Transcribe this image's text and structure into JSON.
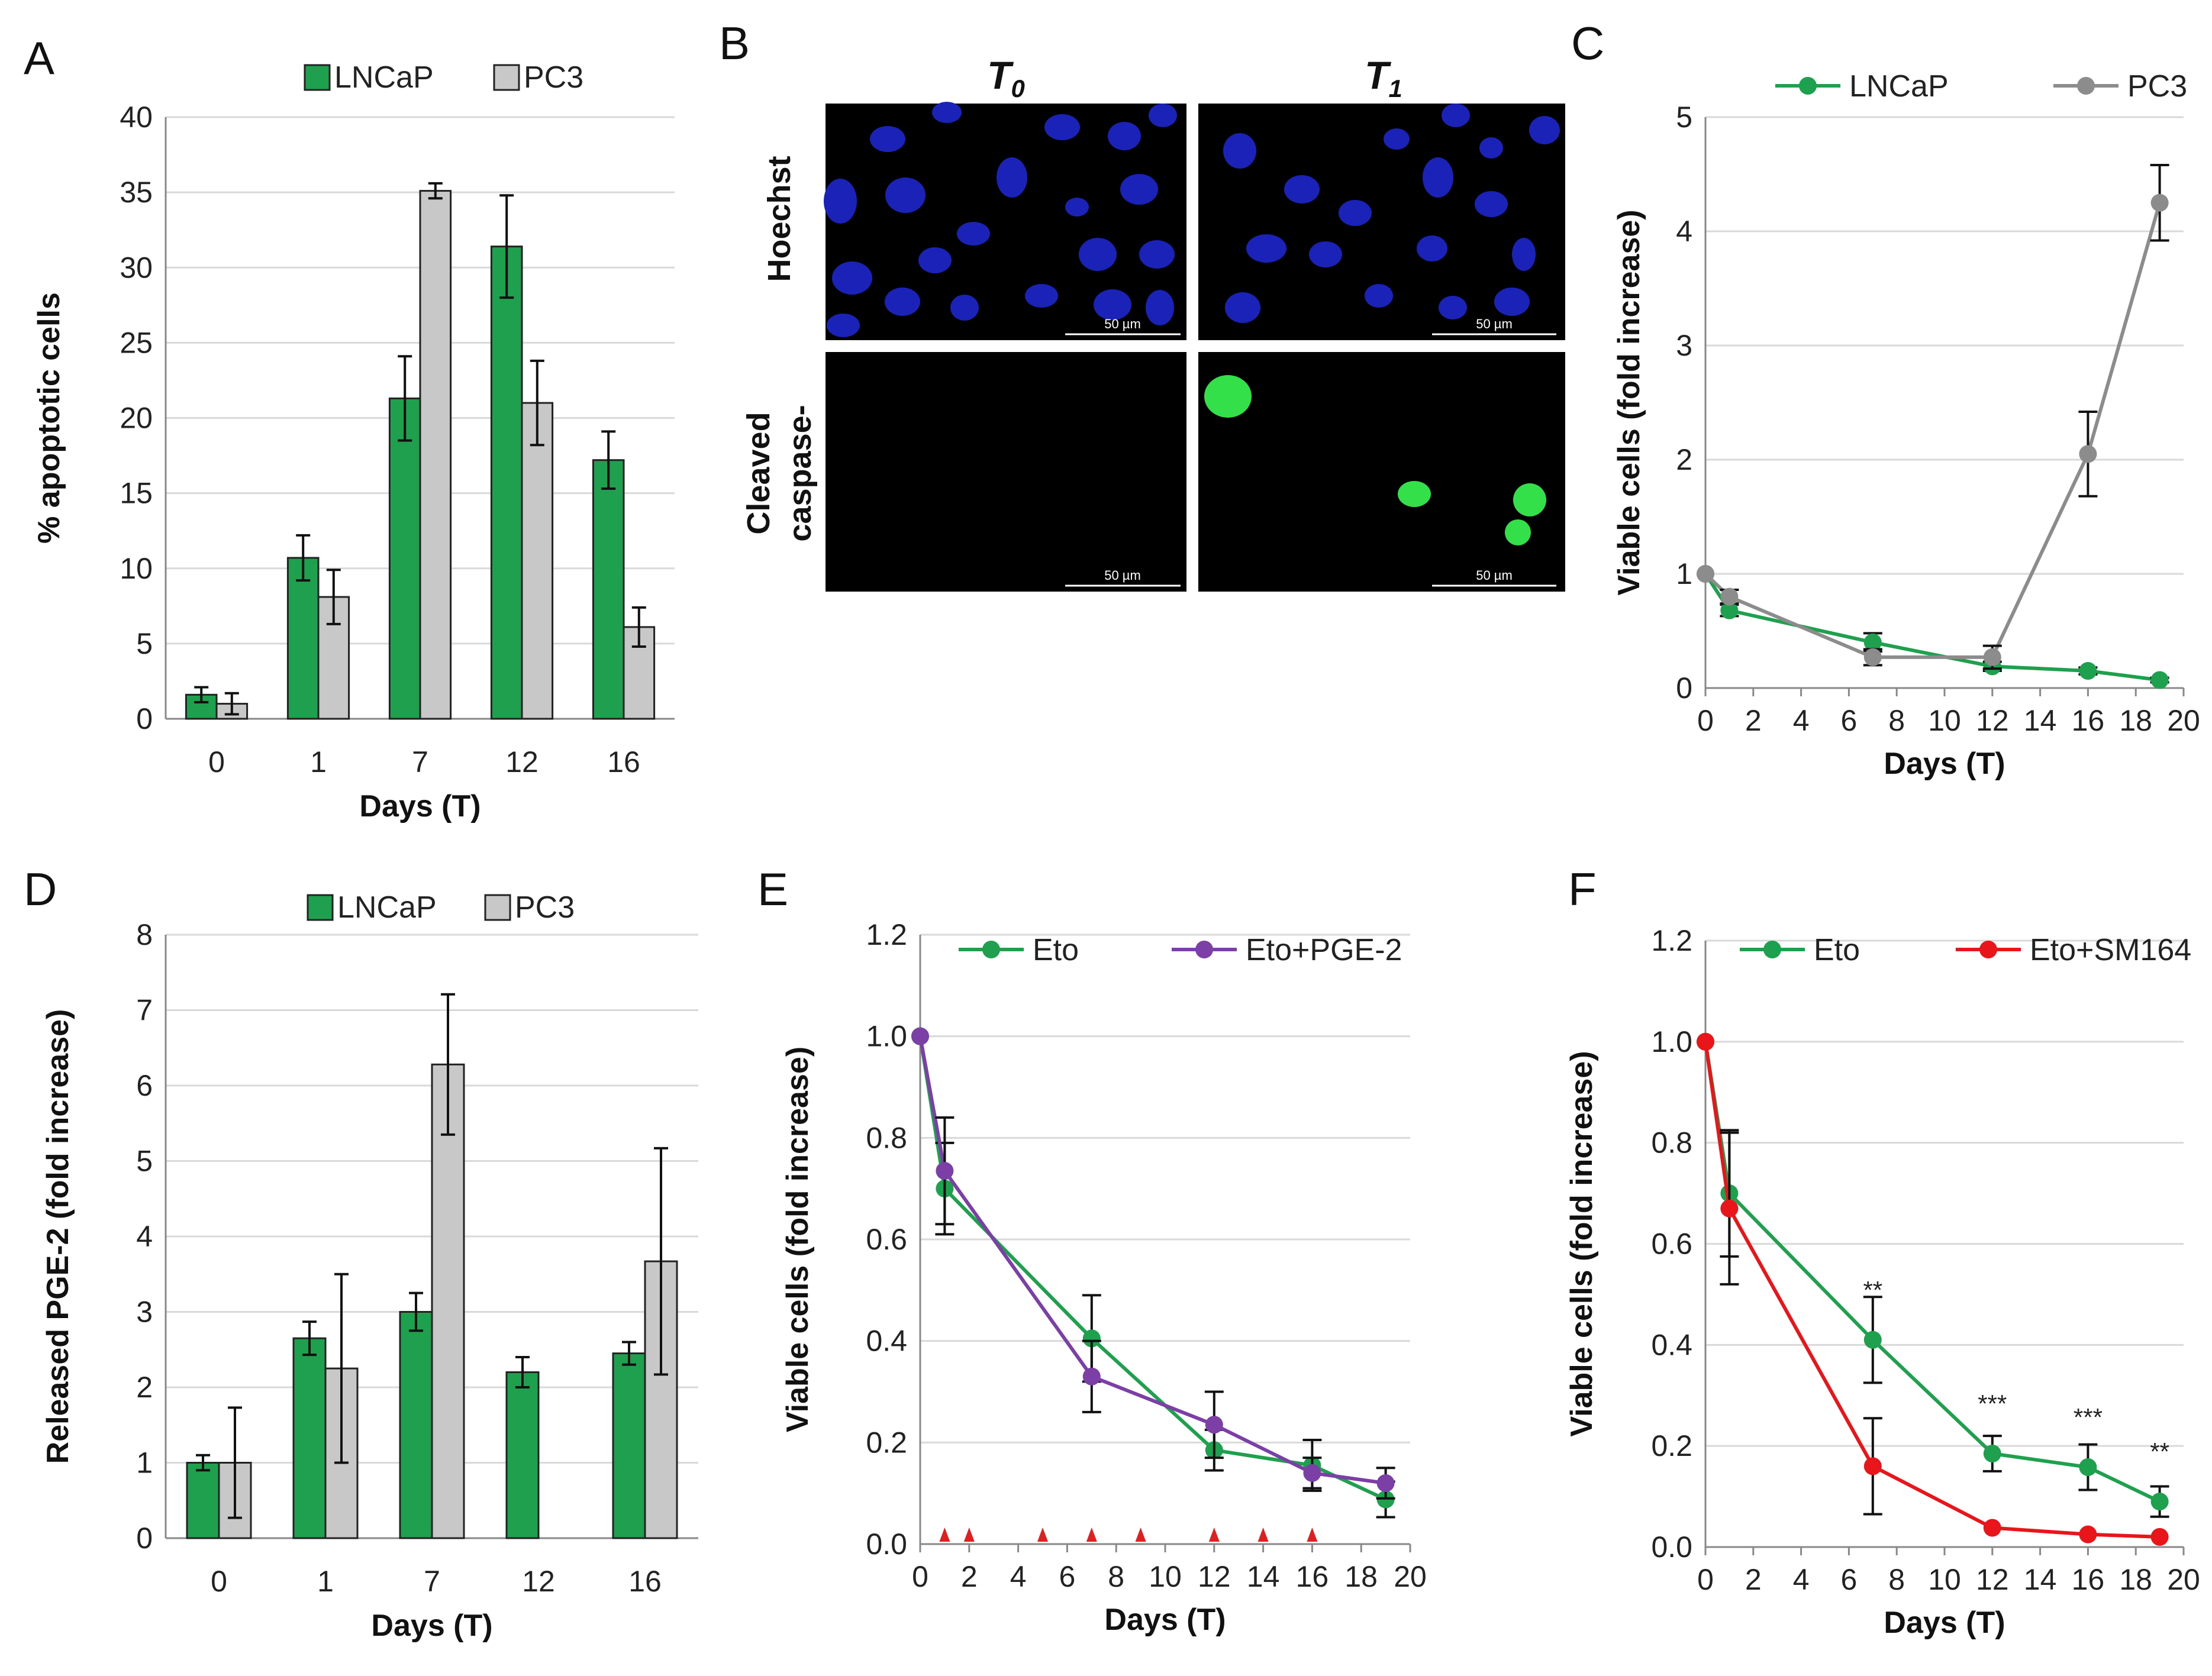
{
  "panels": {
    "A": {
      "label": "A",
      "chart_data": {
        "type": "bar",
        "categories": [
          "0",
          "1",
          "7",
          "12",
          "16"
        ],
        "series": [
          {
            "name": "LNCaP",
            "color": "#1ea04e",
            "values": [
              1.6,
              10.7,
              21.3,
              31.4,
              17.2
            ],
            "errors": [
              0.5,
              1.5,
              2.8,
              3.4,
              1.9
            ]
          },
          {
            "name": "PC3",
            "color": "#c8c8c8",
            "values": [
              1.0,
              8.1,
              35.1,
              21.0,
              6.1
            ],
            "errors": [
              0.7,
              1.8,
              0.5,
              2.8,
              1.3
            ]
          }
        ],
        "ylim": [
          0,
          40
        ],
        "yticks": [
          "0",
          "5",
          "10",
          "15",
          "20",
          "25",
          "30",
          "35",
          "40"
        ],
        "xlabel": "Days (T)",
        "ylabel": "% apoptotic cells",
        "legend": "top"
      }
    },
    "B": {
      "label": "B",
      "col_headers": [
        {
          "main": "T",
          "sub": "0"
        },
        {
          "main": "T",
          "sub": "1"
        }
      ],
      "row_labels": [
        [
          "Hoechst"
        ],
        [
          "Cleaved",
          "caspase-"
        ]
      ],
      "scale_bar": "50 µm"
    },
    "C": {
      "label": "C",
      "chart_data": {
        "type": "line",
        "series": [
          {
            "name": "LNCaP",
            "color": "#1ea04e",
            "x": [
              0,
              1,
              7,
              12,
              16,
              19
            ],
            "y": [
              1.0,
              0.68,
              0.4,
              0.19,
              0.15,
              0.07
            ],
            "errors": [
              0,
              0.05,
              0.08,
              0.04,
              0.03,
              0.02
            ]
          },
          {
            "name": "PC3",
            "color": "#8c8c8c",
            "x": [
              0,
              1,
              7,
              12,
              16,
              19
            ],
            "y": [
              1.0,
              0.8,
              0.27,
              0.27,
              2.05,
              4.25
            ],
            "errors": [
              0,
              0.06,
              0.07,
              0.1,
              0.37,
              0.33
            ]
          }
        ],
        "xlim": [
          0,
          20
        ],
        "ylim": [
          0,
          5
        ],
        "xticks": [
          "0",
          "2",
          "4",
          "6",
          "8",
          "10",
          "12",
          "14",
          "16",
          "18",
          "20"
        ],
        "yticks": [
          "0",
          "1",
          "2",
          "3",
          "4",
          "5"
        ],
        "xlabel": "Days (T)",
        "ylabel": "Viable cells (fold increase)",
        "legend": "top"
      }
    },
    "D": {
      "label": "D",
      "chart_data": {
        "type": "bar",
        "categories": [
          "0",
          "1",
          "7",
          "12",
          "16"
        ],
        "series": [
          {
            "name": "LNCaP",
            "color": "#1ea04e",
            "values": [
              1.0,
              2.65,
              3.0,
              2.2,
              2.45
            ],
            "errors": [
              0.1,
              0.22,
              0.25,
              0.2,
              0.15
            ]
          },
          {
            "name": "PC3",
            "color": "#c8c8c8",
            "values": [
              1.0,
              2.25,
              6.28,
              null,
              3.67
            ],
            "errors": [
              0.73,
              1.25,
              0.93,
              null,
              1.5
            ]
          }
        ],
        "ylim": [
          0,
          8
        ],
        "yticks": [
          "0",
          "1",
          "2",
          "3",
          "4",
          "5",
          "6",
          "7",
          "8"
        ],
        "xlabel": "Days (T)",
        "ylabel": "Released PGE-2 (fold increase)",
        "legend": "top"
      }
    },
    "E": {
      "label": "E",
      "chart_data": {
        "type": "line",
        "series": [
          {
            "name": "Eto",
            "color": "#1ea04e",
            "x": [
              0,
              1,
              7,
              12,
              16,
              19
            ],
            "y": [
              1.0,
              0.7,
              0.405,
              0.185,
              0.155,
              0.088
            ],
            "errors": [
              0,
              0.09,
              0.085,
              0.04,
              0.05,
              0.035
            ]
          },
          {
            "name": "Eto+PGE-2",
            "color": "#7b3fa6",
            "x": [
              0,
              1,
              7,
              12,
              16,
              19
            ],
            "y": [
              1.0,
              0.735,
              0.33,
              0.235,
              0.14,
              0.12
            ],
            "errors": [
              0,
              0.105,
              0.07,
              0.065,
              0.03,
              0.03
            ]
          }
        ],
        "xlim": [
          0,
          20
        ],
        "ylim": [
          0,
          1.2
        ],
        "xticks": [
          "0",
          "2",
          "4",
          "6",
          "8",
          "10",
          "12",
          "14",
          "16",
          "18",
          "20"
        ],
        "yticks": [
          "0.0",
          "0.2",
          "0.4",
          "0.6",
          "0.8",
          "1.0",
          "1.2"
        ],
        "treatment_days": [
          1,
          2,
          5,
          7,
          9,
          12,
          14,
          16
        ],
        "marker_color": "#e02020",
        "xlabel": "Days (T)",
        "ylabel": "Viable cells (fold increase)",
        "legend": "top"
      }
    },
    "F": {
      "label": "F",
      "chart_data": {
        "type": "line",
        "series": [
          {
            "name": "Eto",
            "color": "#1ea04e",
            "x": [
              0,
              1,
              7,
              12,
              16,
              19
            ],
            "y": [
              1.0,
              0.7,
              0.41,
              0.185,
              0.158,
              0.09
            ],
            "errors": [
              0,
              0.125,
              0.085,
              0.035,
              0.045,
              0.03
            ]
          },
          {
            "name": "Eto+SM164",
            "color": "#e8161a",
            "x": [
              0,
              1,
              7,
              12,
              16,
              19
            ],
            "y": [
              1.0,
              0.67,
              0.16,
              0.038,
              0.025,
              0.02
            ],
            "errors": [
              0,
              0.15,
              0.095,
              0,
              0,
              0
            ]
          }
        ],
        "xlim": [
          0,
          20
        ],
        "ylim": [
          0,
          1.2
        ],
        "xticks": [
          "0",
          "2",
          "4",
          "6",
          "8",
          "10",
          "12",
          "14",
          "16",
          "18",
          "20"
        ],
        "yticks": [
          "0.0",
          "0.2",
          "0.4",
          "0.6",
          "0.8",
          "1.0",
          "1.2"
        ],
        "significance": [
          {
            "x": 7,
            "y": 0.41,
            "label": "**"
          },
          {
            "x": 12,
            "y": 0.185,
            "label": "***"
          },
          {
            "x": 16,
            "y": 0.158,
            "label": "***"
          },
          {
            "x": 19,
            "y": 0.09,
            "label": "**"
          }
        ],
        "xlabel": "Days (T)",
        "ylabel": "Viable cells (fold increase)",
        "legend": "top"
      }
    }
  }
}
